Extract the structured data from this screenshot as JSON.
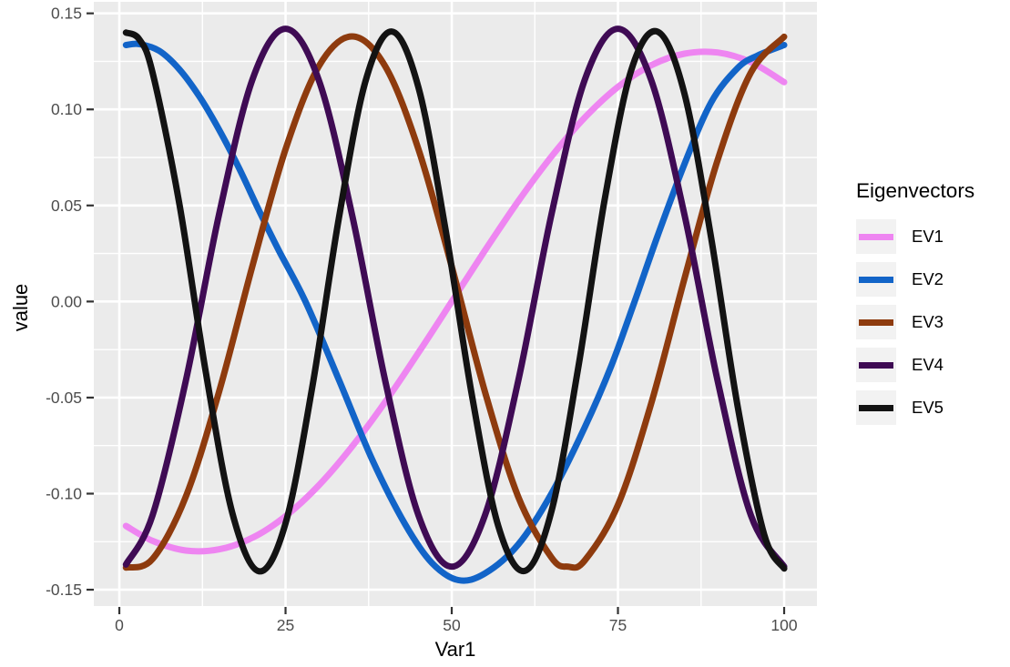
{
  "chart_data": {
    "type": "line",
    "title": "",
    "xlabel": "Var1",
    "ylabel": "value",
    "legend_title": "Eigenvectors",
    "legend_position": "right",
    "grid": true,
    "x_domain": [
      -3.84,
      104.93
    ],
    "y_domain": [
      -0.1585,
      0.156
    ],
    "x_ticks": [
      0,
      25,
      50,
      75,
      100
    ],
    "x_tick_labels": [
      "0",
      "25",
      "50",
      "75",
      "100"
    ],
    "x_minor_ticks": [
      12.5,
      37.5,
      62.5,
      87.5
    ],
    "y_ticks": [
      -0.15,
      -0.1,
      -0.05,
      0.0,
      0.05,
      0.1,
      0.15
    ],
    "y_tick_labels": [
      "-0.15",
      "-0.10",
      "-0.05",
      "0.00",
      "0.05",
      "0.10",
      "0.15"
    ],
    "y_minor_ticks": [
      -0.125,
      -0.075,
      -0.025,
      0.025,
      0.075,
      0.125
    ],
    "series": [
      {
        "name": "EV1",
        "color": "#EE85F1",
        "points": [
          [
            1,
            -0.1168
          ],
          [
            5,
            -0.1246
          ],
          [
            10,
            -0.1296
          ],
          [
            15,
            -0.129
          ],
          [
            20,
            -0.123
          ],
          [
            25,
            -0.1117
          ],
          [
            30,
            -0.0957
          ],
          [
            35,
            -0.0755
          ],
          [
            40,
            -0.0522
          ],
          [
            45,
            -0.0266
          ],
          [
            50,
            0.0
          ],
          [
            55,
            0.0266
          ],
          [
            60,
            0.0522
          ],
          [
            65,
            0.0755
          ],
          [
            70,
            0.0957
          ],
          [
            75,
            0.1117
          ],
          [
            80,
            0.123
          ],
          [
            85,
            0.129
          ],
          [
            90,
            0.1296
          ],
          [
            95,
            0.1246
          ],
          [
            100,
            0.1142
          ]
        ]
      },
      {
        "name": "EV2",
        "color": "#1264C8",
        "points": [
          [
            1,
            0.1335
          ],
          [
            3,
            0.134
          ],
          [
            6,
            0.1305
          ],
          [
            9,
            0.121
          ],
          [
            12,
            0.107
          ],
          [
            15,
            0.0895
          ],
          [
            18,
            0.0695
          ],
          [
            21,
            0.0475
          ],
          [
            24,
            0.0265
          ],
          [
            28,
            0.0
          ],
          [
            33,
            -0.0405
          ],
          [
            38,
            -0.082
          ],
          [
            43,
            -0.116
          ],
          [
            47,
            -0.136
          ],
          [
            51,
            -0.145
          ],
          [
            55,
            -0.1415
          ],
          [
            60,
            -0.1265
          ],
          [
            65,
            -0.1
          ],
          [
            70,
            -0.0655
          ],
          [
            74,
            -0.0335
          ],
          [
            77.5,
            0.0
          ],
          [
            81,
            0.0345
          ],
          [
            85,
            0.0715
          ],
          [
            89,
            0.1035
          ],
          [
            93,
            0.1215
          ],
          [
            96,
            0.128
          ],
          [
            100,
            0.1335
          ]
        ]
      },
      {
        "name": "EV3",
        "color": "#8E3B0E",
        "points": [
          [
            1,
            -0.1385
          ],
          [
            5,
            -0.134
          ],
          [
            10,
            -0.1016
          ],
          [
            15,
            -0.047
          ],
          [
            20,
            0.0182
          ],
          [
            25,
            0.0792
          ],
          [
            30,
            0.1224
          ],
          [
            35,
            0.138
          ],
          [
            40,
            0.1224
          ],
          [
            45,
            0.0792
          ],
          [
            50,
            0.0182
          ],
          [
            55,
            -0.047
          ],
          [
            60,
            -0.1016
          ],
          [
            65,
            -0.1332
          ],
          [
            67.5,
            -0.138
          ],
          [
            70,
            -0.1348
          ],
          [
            75,
            -0.1059
          ],
          [
            80,
            -0.0531
          ],
          [
            85,
            0.0118
          ],
          [
            90,
            0.0737
          ],
          [
            95,
            0.1192
          ],
          [
            100,
            0.1378
          ]
        ]
      },
      {
        "name": "EV4",
        "color": "#3F0B54",
        "points": [
          [
            1,
            -0.1369
          ],
          [
            5,
            -0.1113
          ],
          [
            10,
            -0.0413
          ],
          [
            15,
            0.0453
          ],
          [
            20,
            0.1153
          ],
          [
            25,
            0.142
          ],
          [
            30,
            0.1153
          ],
          [
            35,
            0.0453
          ],
          [
            40,
            -0.0413
          ],
          [
            45,
            -0.1113
          ],
          [
            50,
            -0.138
          ],
          [
            55,
            -0.1113
          ],
          [
            60,
            -0.0413
          ],
          [
            65,
            0.0453
          ],
          [
            70,
            0.1153
          ],
          [
            75,
            0.142
          ],
          [
            80,
            0.1153
          ],
          [
            85,
            0.0453
          ],
          [
            90,
            -0.0413
          ],
          [
            95,
            -0.1113
          ],
          [
            100,
            -0.138
          ]
        ]
      },
      {
        "name": "EV5",
        "color": "#131313",
        "points": [
          [
            1,
            0.14
          ],
          [
            3,
            0.1365
          ],
          [
            5,
            0.1192
          ],
          [
            9,
            0.0515
          ],
          [
            13,
            -0.0366
          ],
          [
            17,
            -0.1101
          ],
          [
            21,
            -0.1404
          ],
          [
            25,
            -0.1155
          ],
          [
            29,
            -0.045
          ],
          [
            33,
            0.0429
          ],
          [
            37,
            0.1143
          ],
          [
            41,
            0.1405
          ],
          [
            45,
            0.1114
          ],
          [
            49,
            0.0388
          ],
          [
            53,
            -0.0481
          ],
          [
            57,
            -0.1168
          ],
          [
            61,
            -0.1402
          ],
          [
            65,
            -0.1092
          ],
          [
            69,
            -0.035
          ],
          [
            73,
            0.053
          ],
          [
            77,
            0.1204
          ],
          [
            81,
            0.1404
          ],
          [
            85,
            0.1083
          ],
          [
            89,
            0.0336
          ],
          [
            93,
            -0.0544
          ],
          [
            97,
            -0.1213
          ],
          [
            100,
            -0.139
          ]
        ]
      }
    ],
    "colors": {
      "panel_background": "#EBEBEB",
      "grid_major": "#FFFFFF",
      "grid_minor": "#FFFFFF",
      "tick_mark": "#333333",
      "tick_label": "#4D4D4D",
      "axis_title": "#000000",
      "legend_key_fill": "#F2F2F2",
      "legend_text": "#000000",
      "outer_background": "#FFFFFF"
    },
    "line_width": 7
  }
}
